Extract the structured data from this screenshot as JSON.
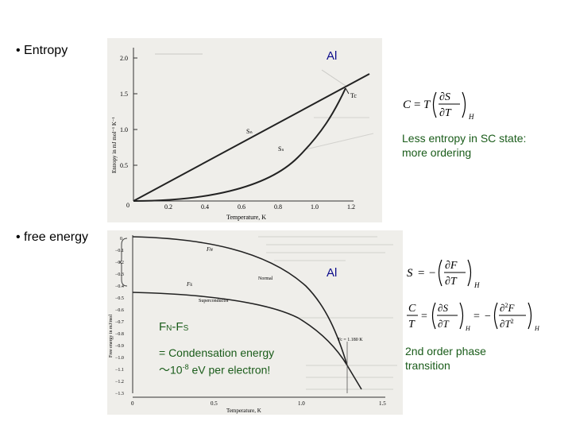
{
  "bullets": {
    "entropy": "• Entropy",
    "free_energy": "• free energy"
  },
  "entropy_plot": {
    "al_label": "Al",
    "ylabel": "Entropy in mJ mol⁻¹ K⁻¹",
    "xlabel": "Temperature, K",
    "yticks": [
      "2.0",
      "1.5",
      "1.0",
      "0.5",
      "0"
    ],
    "xticks": [
      "0.2",
      "0.4",
      "0.6",
      "0.8",
      "1.0",
      "1.2"
    ],
    "curve_labels": {
      "normal": "Sₙ",
      "super": "Sₛ",
      "tc": "Tc"
    }
  },
  "free_energy_plot": {
    "al_label": "Al",
    "ylabel": "Free energy in mJ/mol",
    "xlabel": "Temperature, K",
    "yticks": [
      "0",
      "−0.1",
      "−0.2",
      "−0.3",
      "−0.4",
      "−0.5",
      "−0.6",
      "−0.7",
      "−0.8",
      "−0.9",
      "−1.0",
      "−1.1",
      "−1.2",
      "−1.3"
    ],
    "xticks": [
      "0",
      "0.5",
      "1.0",
      "1.5"
    ],
    "curve_labels": {
      "fn": "Fɴ",
      "fs": "Fs",
      "normal": "Normal",
      "super": "Superconductor",
      "tc": "Tc = 1.180 K"
    }
  },
  "formulas": {
    "heat_capacity": "C = T(∂S/∂T)_H",
    "entropy_from_F": "S = −(∂F/∂T)_H",
    "c_over_t": "C/T = (∂S/∂T)_H = −(∂²F/∂T²)_H"
  },
  "notes": {
    "entropy_note_line1": "Less entropy in SC state:",
    "entropy_note_line2": "more ordering",
    "fn_fs_label": "FN-FS",
    "condensation_line1": "= Condensation energy",
    "condensation_line2": "～10",
    "condensation_exp": "-8",
    "condensation_line2b": " eV per electron!",
    "transition_line1": "2nd order phase",
    "transition_line2": "transition"
  }
}
